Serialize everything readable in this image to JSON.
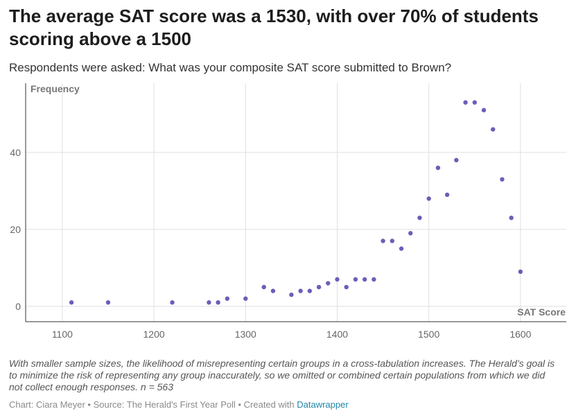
{
  "header": {
    "title": "The average SAT score was a 1530, with over 70% of students scoring above a 1500",
    "subtitle": "Respondents were asked: What was your composite SAT score submitted to Brown?"
  },
  "footer": {
    "notes": "With smaller sample sizes, the likelihood of misrepresenting certain groups in a cross-tabulation increases. The Herald’s goal is to minimize the risk of representing any group inaccurately, so we omitted or combined certain populations from which we did not collect enough responses. n = 563",
    "byline_prefix": "Chart: Ciara Meyer • Source: The Herald's First Year Poll • Created with ",
    "byline_link": "Datawrapper"
  },
  "colors": {
    "point": "#6d5db8",
    "grid": "#e0e0e0",
    "axis": "#333333"
  },
  "chart_data": {
    "type": "scatter",
    "xlabel": "SAT Score",
    "ylabel": "Frequency",
    "xlim": [
      1060,
      1650
    ],
    "ylim": [
      -4,
      58
    ],
    "xticks": [
      1100,
      1200,
      1300,
      1400,
      1500,
      1600
    ],
    "yticks": [
      0,
      20,
      40
    ],
    "grid": true,
    "points": [
      {
        "x": 1110,
        "y": 1
      },
      {
        "x": 1150,
        "y": 1
      },
      {
        "x": 1220,
        "y": 1
      },
      {
        "x": 1260,
        "y": 1
      },
      {
        "x": 1270,
        "y": 1
      },
      {
        "x": 1280,
        "y": 2
      },
      {
        "x": 1300,
        "y": 2
      },
      {
        "x": 1320,
        "y": 5
      },
      {
        "x": 1330,
        "y": 4
      },
      {
        "x": 1350,
        "y": 3
      },
      {
        "x": 1360,
        "y": 4
      },
      {
        "x": 1370,
        "y": 4
      },
      {
        "x": 1380,
        "y": 5
      },
      {
        "x": 1390,
        "y": 6
      },
      {
        "x": 1400,
        "y": 7
      },
      {
        "x": 1410,
        "y": 5
      },
      {
        "x": 1420,
        "y": 7
      },
      {
        "x": 1430,
        "y": 7
      },
      {
        "x": 1440,
        "y": 7
      },
      {
        "x": 1450,
        "y": 17
      },
      {
        "x": 1460,
        "y": 17
      },
      {
        "x": 1470,
        "y": 15
      },
      {
        "x": 1480,
        "y": 19
      },
      {
        "x": 1490,
        "y": 23
      },
      {
        "x": 1500,
        "y": 28
      },
      {
        "x": 1510,
        "y": 36
      },
      {
        "x": 1520,
        "y": 29
      },
      {
        "x": 1530,
        "y": 38
      },
      {
        "x": 1540,
        "y": 53
      },
      {
        "x": 1550,
        "y": 53
      },
      {
        "x": 1560,
        "y": 51
      },
      {
        "x": 1570,
        "y": 46
      },
      {
        "x": 1580,
        "y": 33
      },
      {
        "x": 1590,
        "y": 23
      },
      {
        "x": 1600,
        "y": 9
      }
    ]
  }
}
